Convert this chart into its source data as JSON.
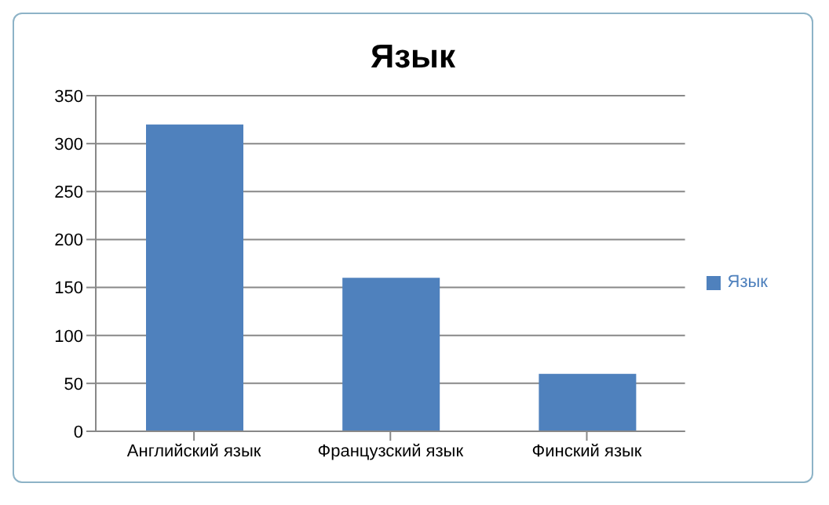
{
  "chart_data": {
    "type": "bar",
    "title": "Язык",
    "categories": [
      "Английский язык",
      "Французский язык",
      "Финский язык"
    ],
    "series": [
      {
        "name": "Язык",
        "color": "#4f81bd",
        "values": [
          320,
          160,
          60
        ]
      }
    ],
    "ylim": [
      0,
      350
    ],
    "yticks": [
      0,
      50,
      100,
      150,
      200,
      250,
      300,
      350
    ],
    "grid": "y",
    "legend": "right"
  }
}
